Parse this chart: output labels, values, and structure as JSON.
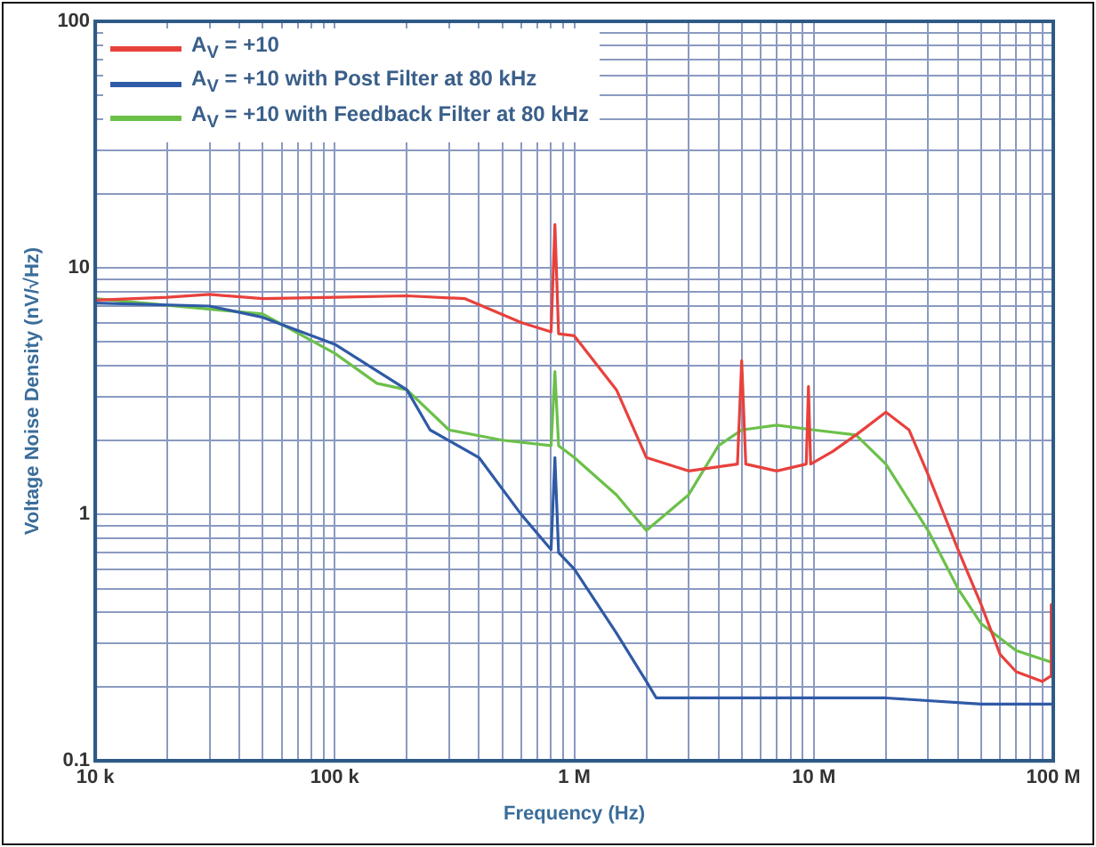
{
  "chart_data": {
    "type": "line",
    "xlabel": "Frequency (Hz)",
    "ylabel": "Voltage Noise Density (nV/√Hz)",
    "log": "xy",
    "grid": true,
    "legend": "top left",
    "marker": "none",
    "line_style": "solid",
    "xlim": [
      10000,
      100000000
    ],
    "ylim": [
      0.1,
      100
    ],
    "xticks": [
      {
        "value": 10000,
        "label": "10 k"
      },
      {
        "value": 20000,
        "label": null
      },
      {
        "value": 30000,
        "label": null
      },
      {
        "value": 40000,
        "label": null
      },
      {
        "value": 50000,
        "label": null
      },
      {
        "value": 60000,
        "label": null
      },
      {
        "value": 70000,
        "label": null
      },
      {
        "value": 80000,
        "label": null
      },
      {
        "value": 90000,
        "label": null
      },
      {
        "value": 100000,
        "label": "100 k"
      },
      {
        "value": 200000,
        "label": null
      },
      {
        "value": 300000,
        "label": null
      },
      {
        "value": 400000,
        "label": null
      },
      {
        "value": 500000,
        "label": null
      },
      {
        "value": 600000,
        "label": null
      },
      {
        "value": 700000,
        "label": null
      },
      {
        "value": 800000,
        "label": null
      },
      {
        "value": 900000,
        "label": null
      },
      {
        "value": 1000000,
        "label": "1 M"
      },
      {
        "value": 2000000,
        "label": null
      },
      {
        "value": 3000000,
        "label": null
      },
      {
        "value": 4000000,
        "label": null
      },
      {
        "value": 5000000,
        "label": null
      },
      {
        "value": 6000000,
        "label": null
      },
      {
        "value": 7000000,
        "label": null
      },
      {
        "value": 8000000,
        "label": null
      },
      {
        "value": 9000000,
        "label": null
      },
      {
        "value": 10000000,
        "label": "10 M"
      },
      {
        "value": 20000000,
        "label": null
      },
      {
        "value": 30000000,
        "label": null
      },
      {
        "value": 40000000,
        "label": null
      },
      {
        "value": 50000000,
        "label": null
      },
      {
        "value": 60000000,
        "label": null
      },
      {
        "value": 70000000,
        "label": null
      },
      {
        "value": 80000000,
        "label": null
      },
      {
        "value": 90000000,
        "label": null
      },
      {
        "value": 100000000,
        "label": "100 M"
      }
    ],
    "yticks": [
      0.1,
      {
        "value": 0.2,
        "label": null
      },
      {
        "value": 0.3,
        "label": null
      },
      {
        "value": 0.4,
        "label": null
      },
      {
        "value": 0.5,
        "label": null
      },
      {
        "value": 0.6,
        "label": null
      },
      {
        "value": 0.7,
        "label": null
      },
      {
        "value": 0.8,
        "label": null
      },
      {
        "value": 0.9,
        "label": null
      },
      1,
      {
        "value": 2,
        "label": null
      },
      {
        "value": 3,
        "label": null
      },
      {
        "value": 4,
        "label": null
      },
      {
        "value": 5,
        "label": null
      },
      {
        "value": 6,
        "label": null
      },
      {
        "value": 7,
        "label": null
      },
      {
        "value": 8,
        "label": null
      },
      {
        "value": 9,
        "label": null
      },
      10,
      {
        "value": 20,
        "label": null
      },
      {
        "value": 30,
        "label": null
      },
      {
        "value": 40,
        "label": null
      },
      {
        "value": 50,
        "label": null
      },
      {
        "value": 60,
        "label": null
      },
      {
        "value": 70,
        "label": null
      },
      {
        "value": 80,
        "label": null
      },
      {
        "value": 90,
        "label": null
      },
      100
    ],
    "series": [
      {
        "name": "A$_{V}$ = +10",
        "color": "#e8413c",
        "x": [
          10000,
          20000,
          30000,
          50000,
          100000,
          200000,
          350000,
          600000,
          800000,
          830000,
          860000,
          1000000,
          1500000,
          2000000,
          3000000,
          4800000,
          5000000,
          5200000,
          7000000,
          9300000,
          9500000,
          9700000,
          12000000,
          15000000,
          20000000,
          25000000,
          30000000,
          40000000,
          50000000,
          60000000,
          70000000,
          90000000,
          97000000,
          98000000,
          100000000
        ],
        "values": [
          7.4,
          7.6,
          7.8,
          7.5,
          7.6,
          7.7,
          7.5,
          6.0,
          5.5,
          15,
          5.4,
          5.3,
          3.2,
          1.7,
          1.5,
          1.6,
          4.2,
          1.6,
          1.5,
          1.6,
          3.3,
          1.6,
          1.8,
          2.1,
          2.6,
          2.2,
          1.45,
          0.72,
          0.43,
          0.27,
          0.23,
          0.21,
          0.22,
          0.43,
          0.22
        ]
      },
      {
        "name": "A$_{V}$ = +10 with Post Filter at 80 kHz",
        "color": "#2f5aa6",
        "x": [
          10000,
          30000,
          50000,
          100000,
          200000,
          250000,
          400000,
          600000,
          800000,
          830000,
          860000,
          1000000,
          1500000,
          2000000,
          2200000,
          5000000,
          10000000,
          20000000,
          50000000,
          100000000
        ],
        "values": [
          7.2,
          7.0,
          6.3,
          4.9,
          3.2,
          2.2,
          1.7,
          1.0,
          0.72,
          1.7,
          0.7,
          0.6,
          0.33,
          0.21,
          0.18,
          0.18,
          0.18,
          0.18,
          0.17,
          0.17
        ]
      },
      {
        "name": "A$_{V}$ = +10 with Feedback Filter at 80 kHz",
        "color": "#6cc04a",
        "x": [
          10000,
          50000,
          100000,
          150000,
          200000,
          300000,
          500000,
          800000,
          830000,
          860000,
          1000000,
          1500000,
          2000000,
          3000000,
          4000000,
          5000000,
          7000000,
          10000000,
          15000000,
          20000000,
          30000000,
          40000000,
          50000000,
          70000000,
          100000000
        ],
        "values": [
          7.5,
          6.5,
          4.5,
          3.4,
          3.2,
          2.2,
          2.0,
          1.9,
          3.8,
          1.9,
          1.7,
          1.2,
          0.86,
          1.2,
          1.9,
          2.2,
          2.3,
          2.2,
          2.1,
          1.6,
          0.86,
          0.5,
          0.36,
          0.28,
          0.25
        ]
      }
    ]
  }
}
